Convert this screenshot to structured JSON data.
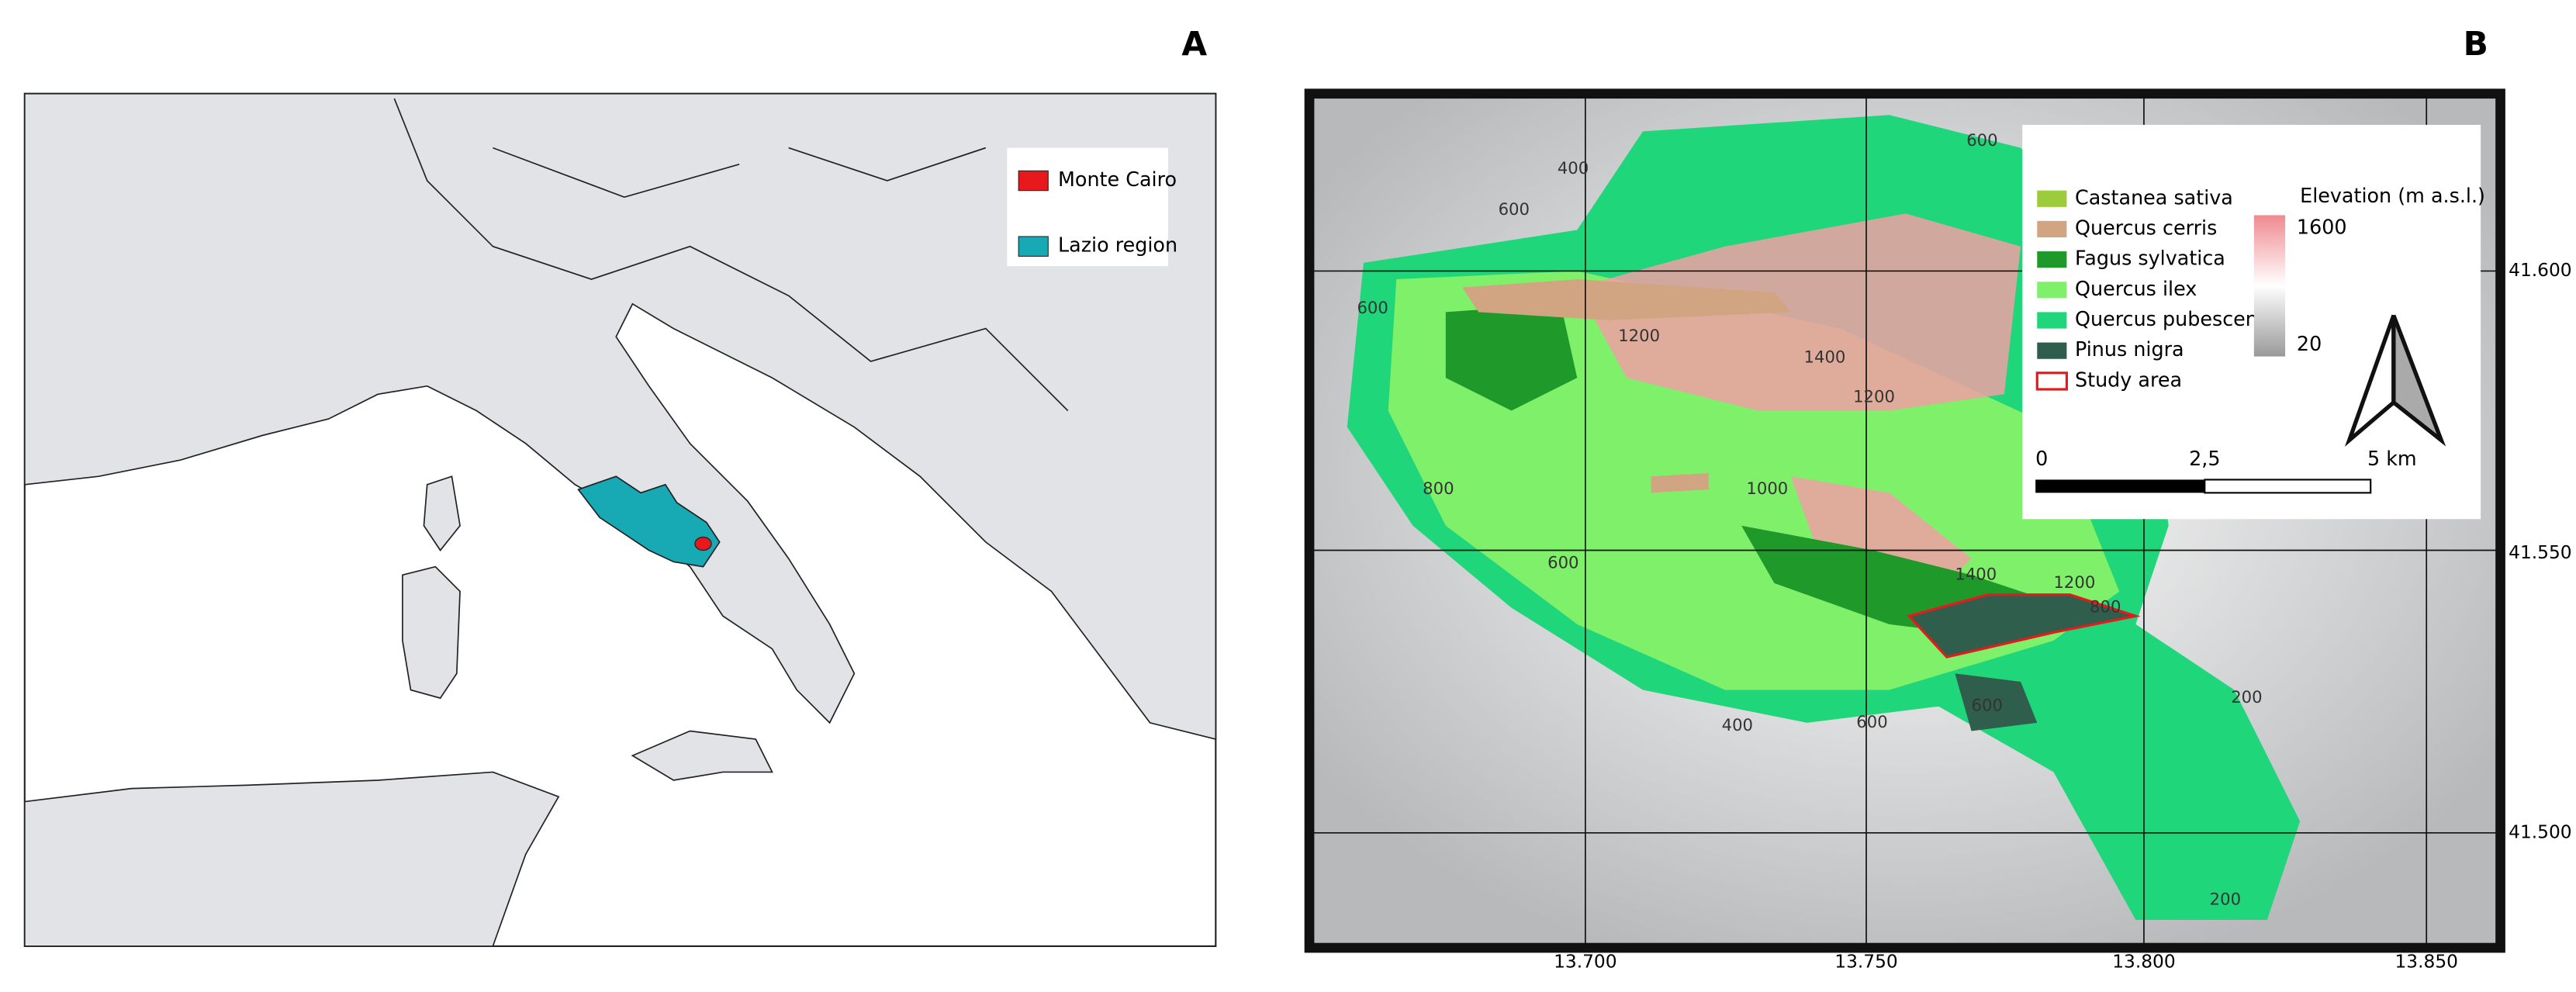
{
  "panels": [
    {
      "label": "A",
      "legend": [
        {
          "label": "Monte Cairo",
          "color": "#e8191c"
        },
        {
          "label": "Lazio region",
          "color": "#17a9b4"
        }
      ]
    },
    {
      "label": "B",
      "legend": [
        {
          "label": "Castanea sativa",
          "color": "#9ccc3c"
        },
        {
          "label": "Quercus cerris",
          "color": "#d2a582"
        },
        {
          "label": "Fagus sylvatica",
          "color": "#1f9a2a"
        },
        {
          "label": "Quercus ilex",
          "color": "#7ff06a"
        },
        {
          "label": "Quercus pubescens",
          "color": "#1fd67a"
        },
        {
          "label": "Pinus nigra",
          "color": "#2f5e4c"
        },
        {
          "label": "Study area",
          "color": "#e8191c"
        }
      ],
      "elevation": {
        "title": "Elevation (m a.s.l.)",
        "max": "1600",
        "min": "20"
      },
      "scale_bar": [
        "0",
        "2,5",
        "5 km"
      ],
      "x_labels": [
        "13.700",
        "13.750",
        "13.800",
        "13.850"
      ],
      "y_labels": [
        "41.600",
        "41.550",
        "41.500"
      ],
      "contour_labels": [
        "600",
        "400",
        "600",
        "600",
        "1200",
        "1400",
        "1200",
        "1000",
        "800",
        "600",
        "1400",
        "1200",
        "800",
        "600",
        "400",
        "200",
        "200",
        "600"
      ]
    }
  ]
}
